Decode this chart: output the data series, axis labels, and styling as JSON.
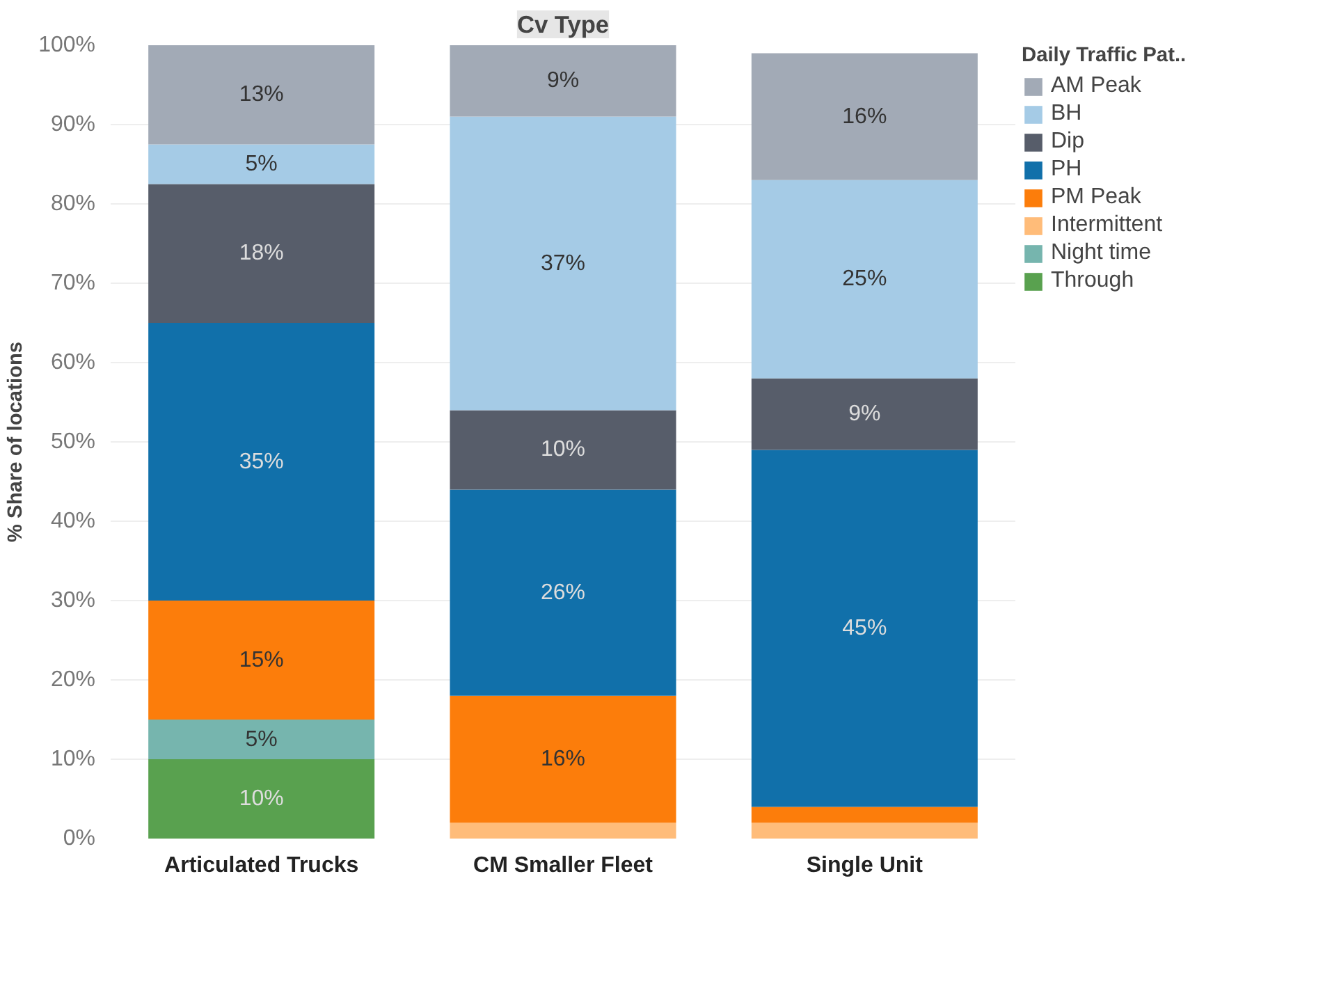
{
  "chart_data": {
    "type": "bar",
    "stacked": true,
    "title": "Cv Type",
    "ylabel": "% Share of locations",
    "legend_title": "Daily Traffic Pat..",
    "legend": "top right",
    "grid": "y",
    "categories": [
      "Articulated Trucks",
      "CM Smaller Fleet",
      "Single Unit"
    ],
    "ylim": [
      0,
      100
    ],
    "yticks": [
      {
        "value": 0,
        "label": "0%"
      },
      {
        "value": 10,
        "label": "10%"
      },
      {
        "value": 20,
        "label": "20%"
      },
      {
        "value": 30,
        "label": "30%"
      },
      {
        "value": 40,
        "label": "40%"
      },
      {
        "value": 50,
        "label": "50%"
      },
      {
        "value": 60,
        "label": "60%"
      },
      {
        "value": 70,
        "label": "70%"
      },
      {
        "value": 80,
        "label": "80%"
      },
      {
        "value": 90,
        "label": "90%"
      },
      {
        "value": 100,
        "label": "100%"
      }
    ],
    "series": [
      {
        "name": "Through",
        "color": "#59a14f",
        "values": [
          10,
          null,
          null
        ],
        "value_labels": [
          "10%",
          null,
          null
        ]
      },
      {
        "name": "Night time",
        "color": "#76b5ae",
        "values": [
          5,
          null,
          null
        ],
        "value_labels": [
          "5%",
          null,
          null
        ]
      },
      {
        "name": "Intermittent",
        "color": "#ffbc79",
        "values": [
          null,
          2,
          2
        ],
        "value_labels": [
          null,
          null,
          null
        ]
      },
      {
        "name": "PM Peak",
        "color": "#fc7d0b",
        "values": [
          15,
          16,
          2
        ],
        "value_labels": [
          "15%",
          "16%",
          null
        ]
      },
      {
        "name": "PH",
        "color": "#1170aa",
        "values": [
          35,
          26,
          45
        ],
        "value_labels": [
          "35%",
          "26%",
          "45%"
        ]
      },
      {
        "name": "Dip",
        "color": "#575d6a",
        "values": [
          17.5,
          10,
          9
        ],
        "value_labels": [
          "18%",
          "10%",
          "9%"
        ]
      },
      {
        "name": "BH",
        "color": "#a5cbe6",
        "values": [
          5,
          37,
          25
        ],
        "value_labels": [
          "5%",
          "37%",
          "25%"
        ]
      },
      {
        "name": "AM Peak",
        "color": "#a2aab6",
        "values": [
          12.5,
          9,
          16
        ],
        "value_labels": [
          "13%",
          "9%",
          "16%"
        ]
      }
    ]
  }
}
